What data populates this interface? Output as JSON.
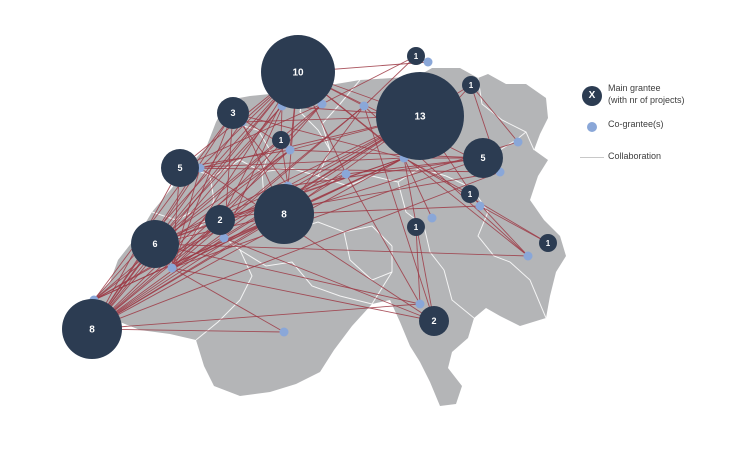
{
  "colors": {
    "country_fill": "#b4b5b7",
    "border_lines": "#ffffff",
    "main_grantee": "#2c3c52",
    "co_grantee": "#8aa7d8",
    "collaboration": "#9e3a45",
    "label_text": "#ffffff"
  },
  "legend": {
    "main_marker": "X",
    "main_label_line1": "Main grantee",
    "main_label_line2": "(with nr of projects)",
    "co_label": "Co-grantee(s)",
    "line_label": "Collaboration"
  },
  "main_grantees": [
    {
      "id": "m10",
      "projects": "10"
    },
    {
      "id": "m13",
      "projects": "13"
    },
    {
      "id": "m3",
      "projects": "3"
    },
    {
      "id": "m1a",
      "projects": "1"
    },
    {
      "id": "m1b",
      "projects": "1"
    },
    {
      "id": "m1c",
      "projects": "1"
    },
    {
      "id": "m5w",
      "projects": "5"
    },
    {
      "id": "m5e",
      "projects": "5"
    },
    {
      "id": "m2a",
      "projects": "2"
    },
    {
      "id": "m8a",
      "projects": "8"
    },
    {
      "id": "m1d",
      "projects": "1"
    },
    {
      "id": "m1e",
      "projects": "1"
    },
    {
      "id": "m1f",
      "projects": "1"
    },
    {
      "id": "m6",
      "projects": "6"
    },
    {
      "id": "m8b",
      "projects": "8"
    },
    {
      "id": "m2b",
      "projects": "2"
    }
  ]
}
